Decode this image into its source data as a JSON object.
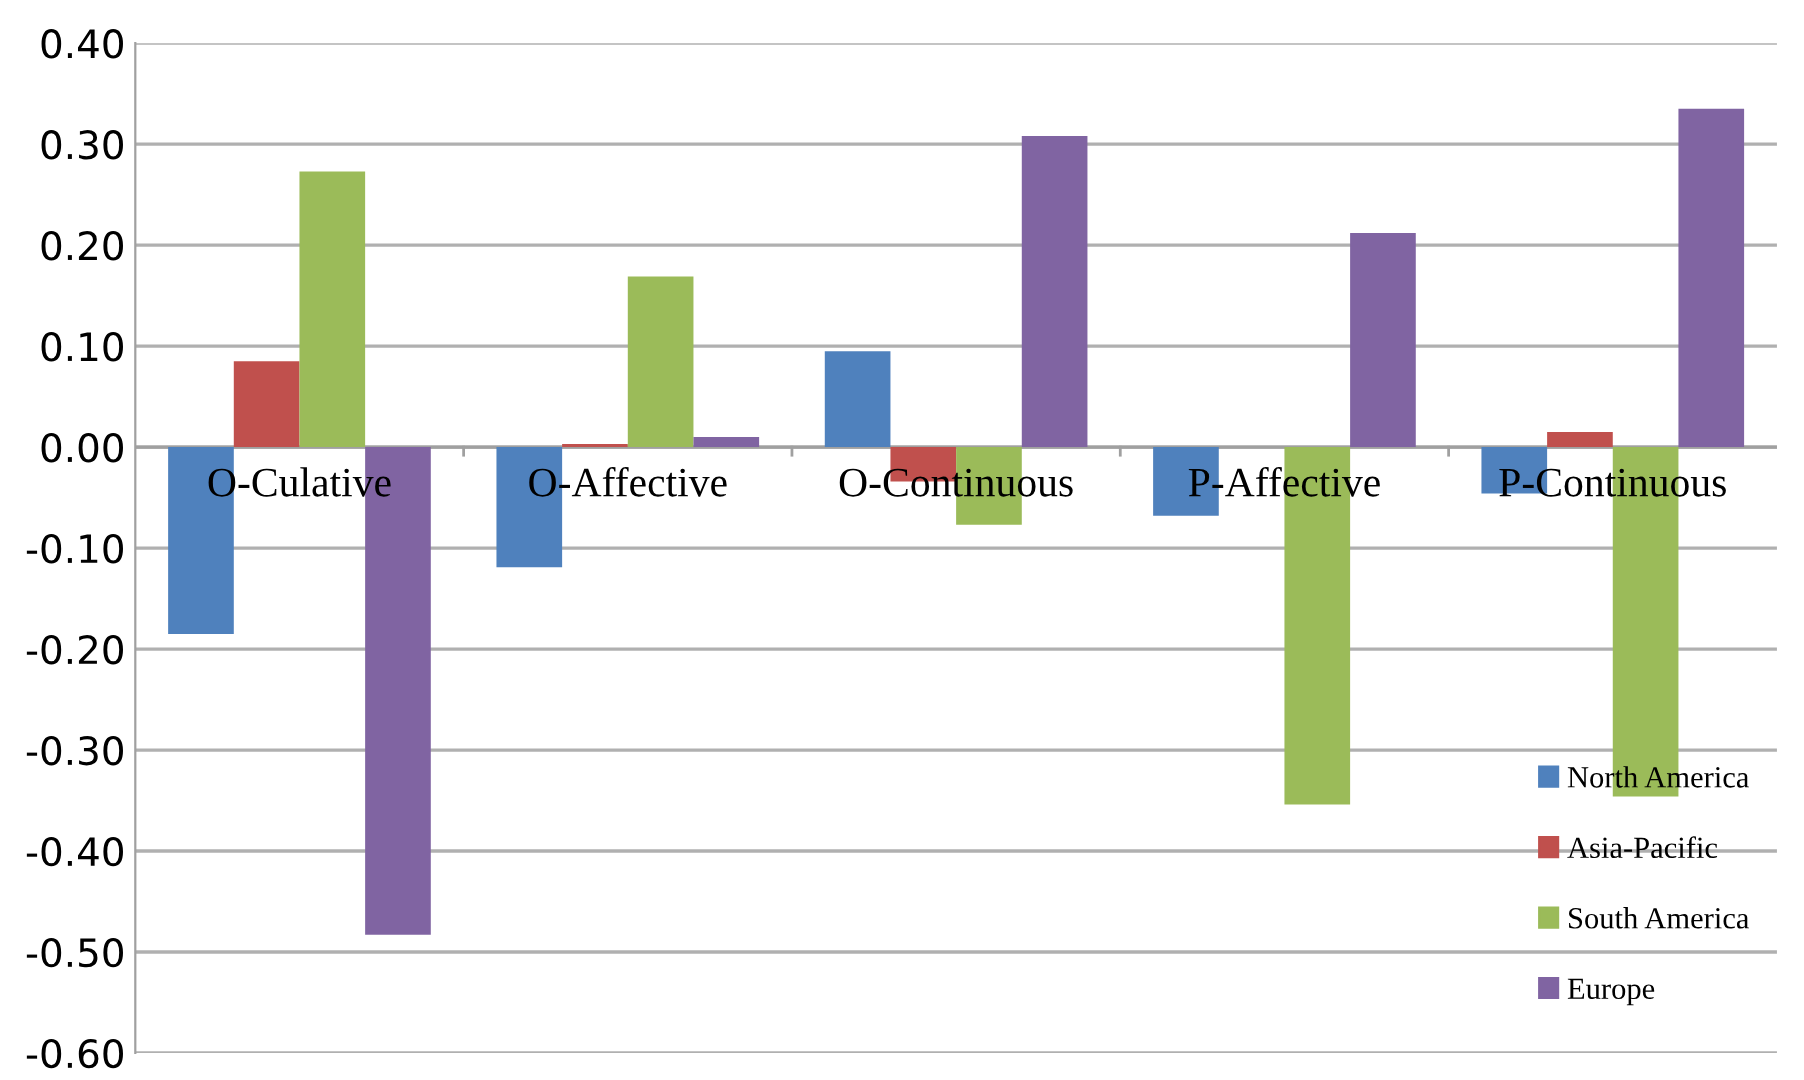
{
  "chart_data": {
    "type": "bar",
    "categories": [
      "O-Culative",
      "O-Affective",
      "O-Continuous",
      "P-Affective",
      "P-Continuous"
    ],
    "series": [
      {
        "name": "North America",
        "color": "#4f81bd",
        "values": [
          -0.185,
          -0.119,
          0.095,
          -0.068,
          -0.046
        ]
      },
      {
        "name": "Asia-Pacific",
        "color": "#c0504d",
        "values": [
          0.085,
          0.003,
          -0.034,
          0,
          0.015
        ]
      },
      {
        "name": "South America",
        "color": "#9bbb59",
        "values": [
          0.273,
          0.169,
          -0.077,
          -0.354,
          -0.346
        ]
      },
      {
        "name": "Europe",
        "color": "#8064a2",
        "values": [
          -0.483,
          0.01,
          0.308,
          0.212,
          0.335
        ]
      }
    ],
    "ylim": [
      -0.6,
      0.4
    ],
    "yticks": [
      {
        "value": -0.6,
        "label": "-0.60"
      },
      {
        "value": -0.5,
        "label": "-0.50"
      },
      {
        "value": -0.4,
        "label": "-0.40"
      },
      {
        "value": -0.3,
        "label": "-0.30"
      },
      {
        "value": -0.2,
        "label": "-0.20"
      },
      {
        "value": -0.1,
        "label": "-0.10"
      },
      {
        "value": 0,
        "label": "0.00"
      },
      {
        "value": 0.1,
        "label": "0.10"
      },
      {
        "value": 0.2,
        "label": "0.20"
      },
      {
        "value": 0.3,
        "label": "0.30"
      },
      {
        "value": 0.4,
        "label": "0.40"
      }
    ],
    "grid": "y",
    "legend": "bottom right"
  }
}
